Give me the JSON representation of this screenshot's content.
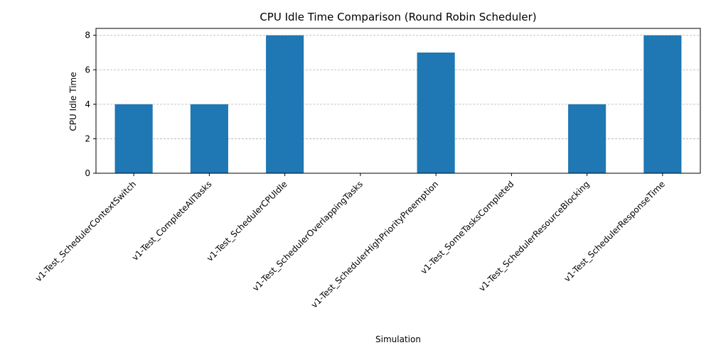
{
  "chart_data": {
    "type": "bar",
    "title": "CPU Idle Time Comparison (Round Robin Scheduler)",
    "xlabel": "Simulation",
    "ylabel": "CPU Idle Time",
    "categories": [
      "v1-Test_SchedulerContextSwitch",
      "v1-Test_CompleteAllTasks",
      "v1-Test_SchedulerCPUIdle",
      "v1-Test_SchedulerOverlappingTasks",
      "v1-Test_SchedulerHighPriorityPreemption",
      "v1-Test_SomeTasksCompleted",
      "v1-Test_SchedulerResourceBlocking",
      "v1-Test_SchedulerResponseTime"
    ],
    "values": [
      4,
      4,
      8,
      0,
      7,
      0,
      4,
      8
    ],
    "ylim": [
      0,
      8.4
    ],
    "yticks": [
      0,
      2,
      4,
      6,
      8
    ],
    "grid": "y-dashed",
    "bar_color": "#1f77b4",
    "grid_color": "#b0b0b0"
  }
}
